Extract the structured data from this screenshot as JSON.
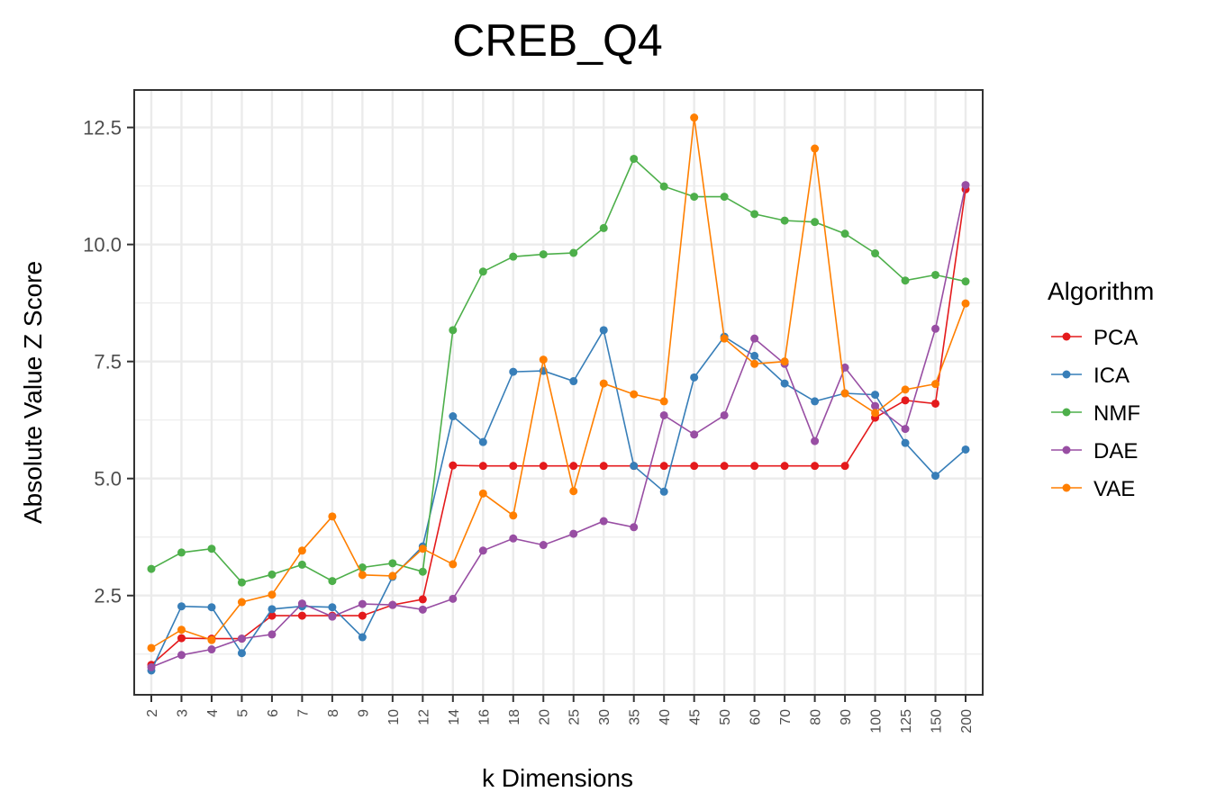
{
  "chart_data": {
    "type": "line",
    "title": "CREB_Q4",
    "xlabel": "k Dimensions",
    "ylabel": "Absolute Value Z Score",
    "categories": [
      "2",
      "3",
      "4",
      "5",
      "6",
      "7",
      "8",
      "9",
      "10",
      "12",
      "14",
      "16",
      "18",
      "20",
      "25",
      "30",
      "35",
      "40",
      "45",
      "50",
      "60",
      "70",
      "80",
      "90",
      "100",
      "125",
      "150",
      "200"
    ],
    "ylim": [
      0.38,
      13.3
    ],
    "yticks": [
      2.5,
      5.0,
      7.5,
      10.0,
      12.5
    ],
    "ytick_labels": [
      "2.5",
      "5.0",
      "7.5",
      "10.0",
      "12.5"
    ],
    "grid": true,
    "legend": {
      "title": "Algorithm",
      "position": "right"
    },
    "series": [
      {
        "name": "PCA",
        "color": "#e41a1c",
        "values": [
          1.02,
          1.59,
          1.58,
          1.58,
          2.07,
          2.07,
          2.07,
          2.07,
          2.3,
          2.42,
          5.28,
          5.27,
          5.27,
          5.27,
          5.27,
          5.27,
          5.27,
          5.27,
          5.27,
          5.27,
          5.27,
          5.27,
          5.27,
          5.27,
          6.3,
          6.67,
          6.6,
          11.18
        ]
      },
      {
        "name": "ICA",
        "color": "#377eb8",
        "values": [
          0.9,
          2.27,
          2.25,
          1.27,
          2.21,
          2.27,
          2.25,
          1.61,
          2.9,
          3.55,
          6.33,
          5.78,
          7.28,
          7.3,
          7.08,
          8.17,
          5.27,
          4.72,
          7.16,
          8.03,
          7.62,
          7.03,
          6.65,
          6.82,
          6.79,
          5.76,
          5.06,
          5.62
        ]
      },
      {
        "name": "NMF",
        "color": "#4daf4a",
        "values": [
          3.07,
          3.42,
          3.5,
          2.78,
          2.95,
          3.16,
          2.81,
          3.1,
          3.19,
          3.01,
          8.17,
          9.42,
          9.74,
          9.79,
          9.82,
          10.35,
          11.83,
          11.24,
          11.02,
          11.02,
          10.65,
          10.51,
          10.48,
          10.23,
          9.81,
          9.23,
          9.35,
          9.21
        ]
      },
      {
        "name": "DAE",
        "color": "#984ea3",
        "values": [
          0.97,
          1.23,
          1.35,
          1.58,
          1.67,
          2.33,
          2.05,
          2.32,
          2.3,
          2.2,
          2.43,
          3.46,
          3.72,
          3.58,
          3.82,
          4.09,
          3.96,
          6.35,
          5.94,
          6.35,
          7.99,
          7.45,
          5.8,
          7.37,
          6.55,
          6.06,
          8.2,
          11.27
        ]
      },
      {
        "name": "VAE",
        "color": "#ff7f00",
        "values": [
          1.38,
          1.77,
          1.55,
          2.36,
          2.52,
          3.46,
          4.19,
          2.94,
          2.92,
          3.5,
          3.17,
          4.68,
          4.21,
          7.54,
          4.73,
          7.03,
          6.8,
          6.65,
          12.71,
          7.99,
          7.45,
          7.5,
          12.05,
          6.82,
          6.4,
          6.9,
          7.02,
          8.74
        ]
      }
    ]
  }
}
